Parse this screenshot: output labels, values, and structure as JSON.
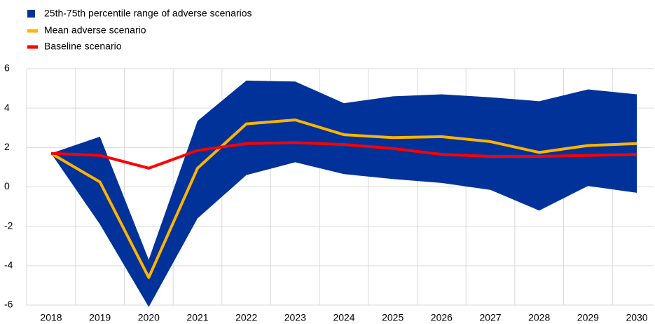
{
  "chart_data": {
    "type": "line",
    "categories": [
      "2018",
      "2019",
      "2020",
      "2021",
      "2022",
      "2023",
      "2024",
      "2025",
      "2026",
      "2027",
      "2028",
      "2029",
      "2030"
    ],
    "band": {
      "name": "25th-75th percentile range of adverse scenarios",
      "color": "#003299",
      "upper": [
        1.7,
        2.55,
        -3.7,
        3.35,
        5.4,
        5.35,
        4.25,
        4.6,
        4.7,
        4.55,
        4.35,
        4.95,
        4.7
      ],
      "lower": [
        1.7,
        -1.9,
        -6.1,
        -1.6,
        0.6,
        1.25,
        0.65,
        0.4,
        0.2,
        -0.15,
        -1.2,
        0.05,
        -0.3
      ]
    },
    "series": [
      {
        "name": "Mean adverse scenario",
        "color": "#ffb400",
        "values": [
          1.7,
          0.25,
          -4.6,
          0.95,
          3.2,
          3.4,
          2.65,
          2.5,
          2.55,
          2.3,
          1.75,
          2.1,
          2.2
        ]
      },
      {
        "name": "Baseline scenario",
        "color": "#ff0000",
        "values": [
          1.7,
          1.6,
          0.95,
          1.85,
          2.2,
          2.25,
          2.15,
          1.95,
          1.65,
          1.55,
          1.55,
          1.6,
          1.65
        ]
      }
    ],
    "ylim": [
      -6,
      6
    ],
    "yticks": [
      -6,
      -4,
      -2,
      0,
      2,
      4,
      6
    ],
    "grid": true
  }
}
